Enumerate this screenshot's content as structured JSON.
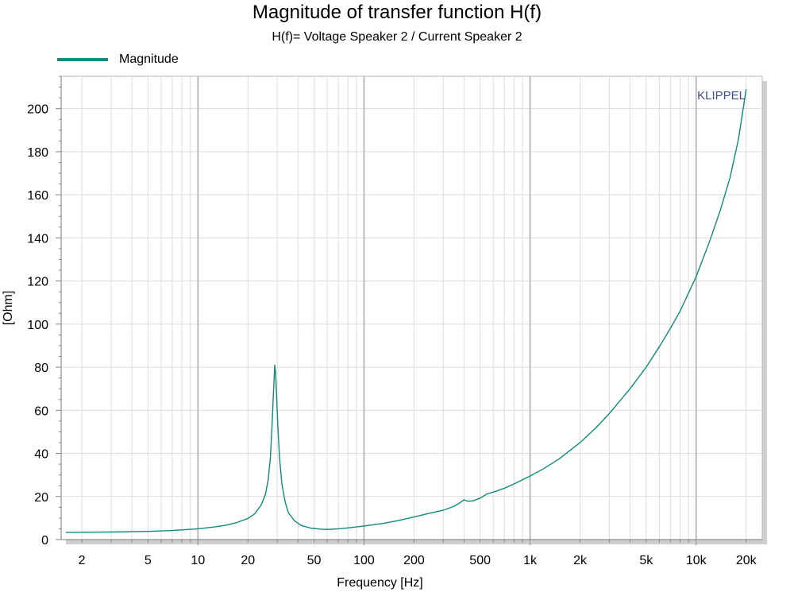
{
  "header": {
    "title": "Magnitude of transfer function H(f)",
    "subtitle": "H(f)= Voltage Speaker 2 / Current Speaker 2"
  },
  "legend": {
    "label": "Magnitude",
    "color": "#0f8a80"
  },
  "brand": {
    "text": "KLIPPEL",
    "color": "#3a4f8c"
  },
  "chart_data": {
    "type": "line",
    "xlabel": "Frequency [Hz]",
    "ylabel": "[Ohm]",
    "x_scale": "log",
    "xlim": [
      1.5,
      25000
    ],
    "ylim": [
      0,
      215
    ],
    "grid": true,
    "legend_position": "top-left",
    "x_ticks": [
      {
        "value": 2,
        "label": "2"
      },
      {
        "value": 5,
        "label": "5"
      },
      {
        "value": 10,
        "label": "10"
      },
      {
        "value": 20,
        "label": "20"
      },
      {
        "value": 50,
        "label": "50"
      },
      {
        "value": 100,
        "label": "100"
      },
      {
        "value": 200,
        "label": "200"
      },
      {
        "value": 500,
        "label": "500"
      },
      {
        "value": 1000,
        "label": "1k"
      },
      {
        "value": 2000,
        "label": "2k"
      },
      {
        "value": 5000,
        "label": "5k"
      },
      {
        "value": 10000,
        "label": "10k"
      },
      {
        "value": 20000,
        "label": "20k"
      }
    ],
    "y_ticks": [
      0,
      20,
      40,
      60,
      80,
      100,
      120,
      140,
      160,
      180,
      200
    ],
    "series": [
      {
        "name": "Magnitude",
        "color": "#0f8a80",
        "points": [
          [
            1.6,
            3.3
          ],
          [
            2,
            3.4
          ],
          [
            3,
            3.5
          ],
          [
            5,
            3.8
          ],
          [
            7,
            4.2
          ],
          [
            10,
            5.0
          ],
          [
            13,
            6.0
          ],
          [
            15,
            6.8
          ],
          [
            17,
            7.8
          ],
          [
            20,
            9.8
          ],
          [
            22,
            12.0
          ],
          [
            24,
            16.0
          ],
          [
            25.5,
            21.0
          ],
          [
            26.5,
            28.0
          ],
          [
            27.3,
            38.0
          ],
          [
            27.9,
            52.0
          ],
          [
            28.4,
            66.0
          ],
          [
            28.8,
            76.0
          ],
          [
            29.0,
            81.0
          ],
          [
            29.3,
            78.0
          ],
          [
            29.7,
            68.0
          ],
          [
            30.3,
            52.0
          ],
          [
            31.0,
            38.0
          ],
          [
            32,
            26.0
          ],
          [
            33.5,
            17.5
          ],
          [
            35,
            12.5
          ],
          [
            38,
            8.8
          ],
          [
            42,
            6.5
          ],
          [
            48,
            5.3
          ],
          [
            55,
            4.8
          ],
          [
            60,
            4.7
          ],
          [
            70,
            5.0
          ],
          [
            80,
            5.4
          ],
          [
            100,
            6.3
          ],
          [
            130,
            7.5
          ],
          [
            160,
            8.8
          ],
          [
            200,
            10.5
          ],
          [
            250,
            12.3
          ],
          [
            300,
            13.6
          ],
          [
            350,
            15.5
          ],
          [
            380,
            17.2
          ],
          [
            400,
            18.5
          ],
          [
            420,
            17.8
          ],
          [
            450,
            17.9
          ],
          [
            500,
            19.2
          ],
          [
            550,
            21.2
          ],
          [
            600,
            22.0
          ],
          [
            700,
            23.8
          ],
          [
            800,
            25.8
          ],
          [
            1000,
            29.5
          ],
          [
            1200,
            32.8
          ],
          [
            1500,
            37.5
          ],
          [
            2000,
            45.0
          ],
          [
            2500,
            52.0
          ],
          [
            3000,
            58.5
          ],
          [
            4000,
            70.0
          ],
          [
            5000,
            80.0
          ],
          [
            6000,
            89.5
          ],
          [
            7000,
            98.0
          ],
          [
            8000,
            106.0
          ],
          [
            10000,
            122.0
          ],
          [
            12000,
            138.0
          ],
          [
            14000,
            153.0
          ],
          [
            16000,
            168.0
          ],
          [
            18000,
            186.0
          ],
          [
            20000,
            209.0
          ]
        ]
      }
    ]
  }
}
